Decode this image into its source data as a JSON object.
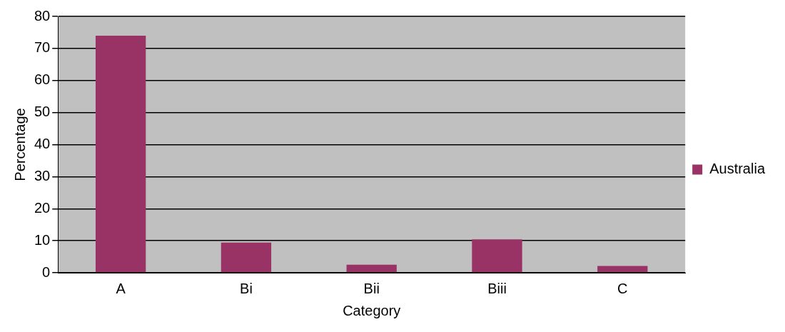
{
  "chart_data": {
    "type": "bar",
    "xlabel": "Category",
    "ylabel": "Percentage",
    "categories": [
      "A",
      "Bi",
      "Bii",
      "Biii",
      "C"
    ],
    "series": [
      {
        "name": "Australia",
        "color": "#993366",
        "values": [
          74,
          9.4,
          2.5,
          10.4,
          2.1
        ]
      }
    ],
    "ylim": [
      0,
      80
    ],
    "yticks": [
      0,
      10,
      20,
      30,
      40,
      50,
      60,
      70,
      80
    ],
    "grid": "y",
    "legend": "right"
  }
}
